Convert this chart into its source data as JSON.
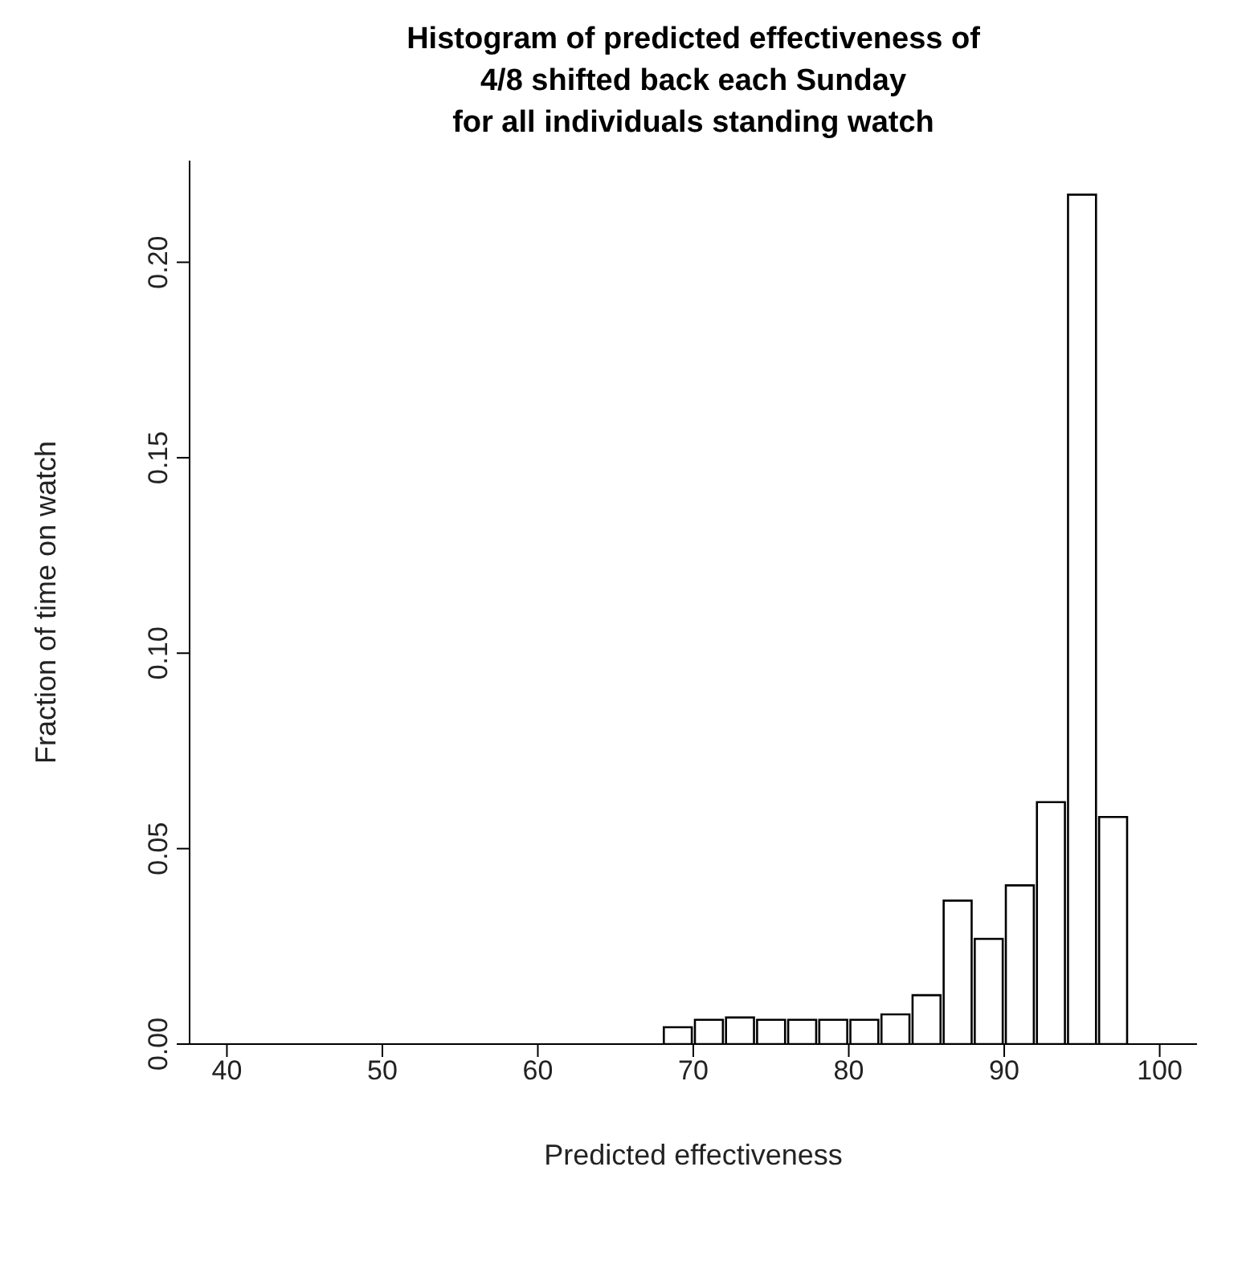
{
  "chart_data": {
    "type": "histogram",
    "title": "Histogram of predicted effectiveness of\n4/8 shifted back each Sunday\nfor all individuals standing watch",
    "xlabel": "Predicted effectiveness",
    "ylabel": "Fraction of time on watch",
    "bins": [
      68,
      70,
      72,
      74,
      76,
      78,
      80,
      82,
      84,
      86,
      88,
      90,
      92,
      94,
      96,
      98
    ],
    "values": [
      0.0043,
      0.0062,
      0.0068,
      0.0062,
      0.0062,
      0.0062,
      0.0062,
      0.0076,
      0.0125,
      0.0367,
      0.0269,
      0.0406,
      0.0619,
      0.2173,
      0.0581
    ],
    "color": "#ffffff",
    "xlim": [
      37.6,
      102.4
    ],
    "xticks": [
      40,
      50,
      60,
      70,
      80,
      90,
      100
    ],
    "ylim": [
      0,
      0.226
    ],
    "yticks": [
      {
        "value": 0,
        "label": "0.00"
      },
      0.05,
      {
        "value": 0.1,
        "label": "0.10"
      },
      0.15,
      {
        "value": 0.2,
        "label": "0.20"
      }
    ],
    "grid": false,
    "legend": false
  }
}
